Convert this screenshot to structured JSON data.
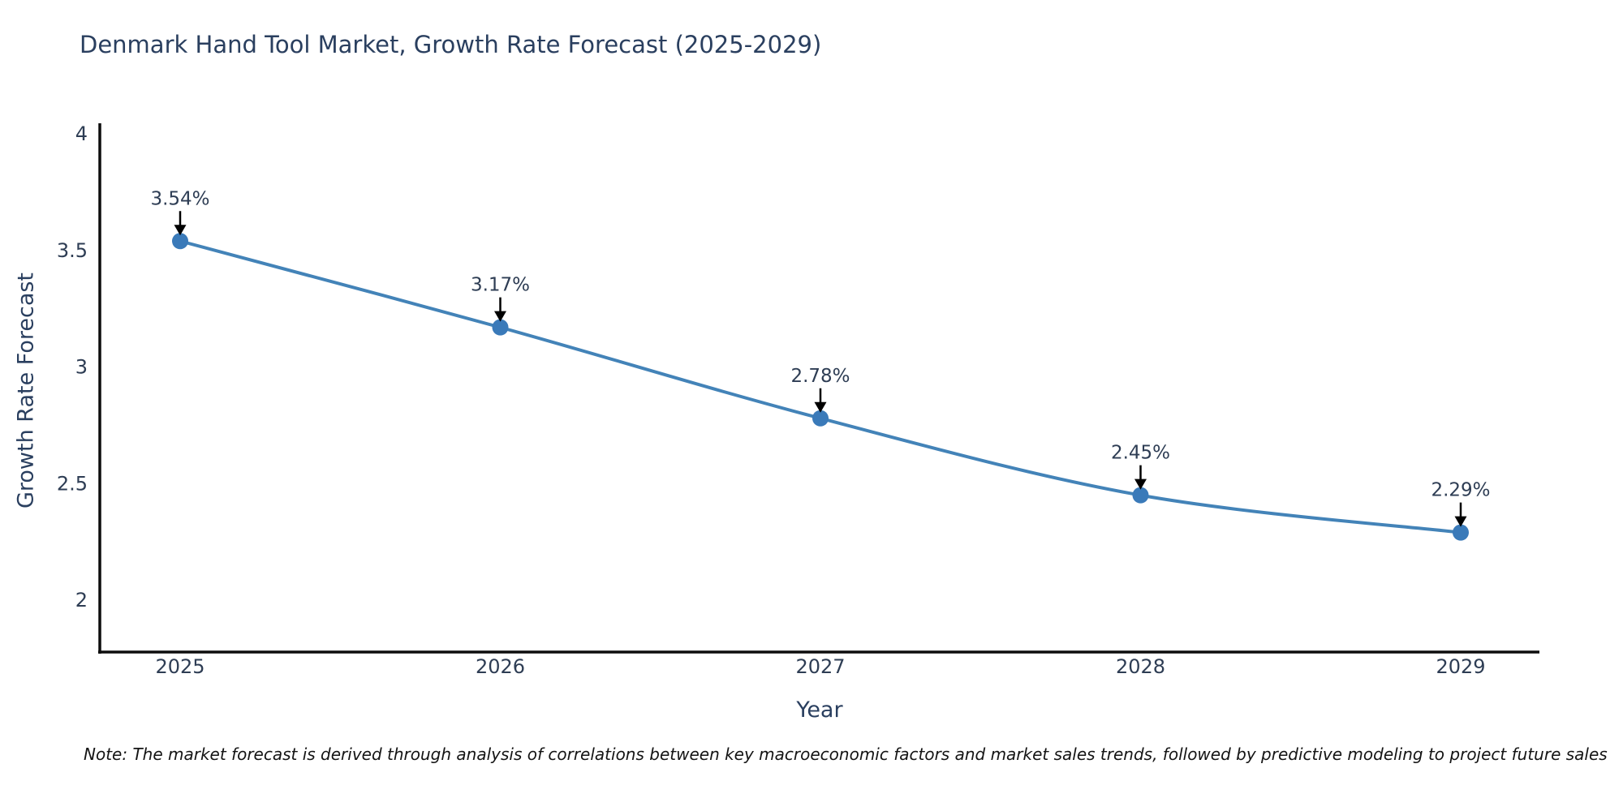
{
  "title": "Denmark Hand Tool Market, Growth Rate Forecast (2025-2029)",
  "note": "Note: The market forecast is derived through analysis of correlations between key macroeconomic factors and market sales trends, followed by predictive modeling to project future sales",
  "chart_data": {
    "type": "line",
    "title": "Denmark Hand Tool Market, Growth Rate Forecast (2025-2029)",
    "categories": [
      "2025",
      "2026",
      "2027",
      "2028",
      "2029"
    ],
    "values": [
      3.54,
      3.17,
      2.78,
      2.45,
      2.29
    ],
    "point_labels": [
      "3.54%",
      "3.17%",
      "2.78%",
      "2.45%",
      "2.29%"
    ],
    "xlabel": "Year",
    "ylabel": "Growth Rate Forecast",
    "yticks": [
      "4",
      "3.5",
      "3",
      "2.5",
      "2"
    ],
    "ylim": [
      2,
      4
    ],
    "grid": false,
    "legend": "none",
    "line_color": "#4383b8",
    "marker_color": "#3a7ab9",
    "axis_color": "#0d0d0d",
    "text_color": "#2e3d54",
    "annotation_color": "#2e3d54",
    "arrow_color": "#000000"
  }
}
